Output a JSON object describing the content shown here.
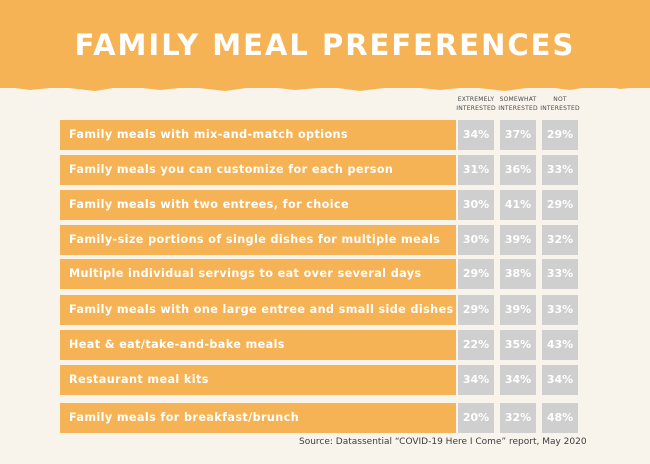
{
  "title": "FAMILY MEAL PREFERENCES",
  "source": "Source: Datassential “COVID-19 Here I Come” report, May 2020",
  "colors": {
    "banner": "#f6b355",
    "bar": "#f6b355",
    "cell": "#cfcfcf",
    "background": "#f8f4ec"
  },
  "chart_data": {
    "type": "table",
    "title": "FAMILY MEAL PREFERENCES",
    "columns": [
      {
        "line1": "EXTREMELY",
        "line2": "INTERESTED"
      },
      {
        "line1": "SOMEWHAT",
        "line2": "INTERESTED"
      },
      {
        "line1": "NOT",
        "line2": "INTERESTED"
      }
    ],
    "rows": [
      {
        "label": "Family meals with mix-and-match options",
        "values": [
          "34%",
          "37%",
          "29%"
        ]
      },
      {
        "label": "Family meals you can customize for each person",
        "values": [
          "31%",
          "36%",
          "33%"
        ]
      },
      {
        "label": "Family meals with two entrees, for choice",
        "values": [
          "30%",
          "41%",
          "29%"
        ]
      },
      {
        "label": "Family-size portions of single dishes for multiple meals",
        "values": [
          "30%",
          "39%",
          "32%"
        ]
      },
      {
        "label": "Multiple individual servings to eat over several days",
        "values": [
          "29%",
          "38%",
          "33%"
        ]
      },
      {
        "label": "Family meals with one large entree and small side dishes",
        "values": [
          "29%",
          "39%",
          "33%"
        ]
      },
      {
        "label": "Heat & eat/take-and-bake meals",
        "values": [
          "22%",
          "35%",
          "43%"
        ]
      },
      {
        "label": "Restaurant meal kits",
        "values": [
          "34%",
          "34%",
          "34%"
        ]
      },
      {
        "label": "Family meals for breakfast/brunch",
        "values": [
          "20%",
          "32%",
          "48%"
        ]
      }
    ]
  }
}
